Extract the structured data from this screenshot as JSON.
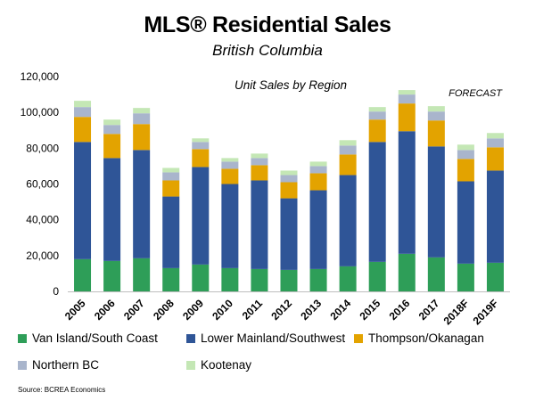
{
  "title": "MLS® Residential Sales",
  "subtitle": "British Columbia",
  "source": "Source: BCREA Economics",
  "chart_data": {
    "type": "bar",
    "stacked": true,
    "inner_title": "Unit Sales by Region",
    "annotation": "FORECAST",
    "categories": [
      "2005",
      "2006",
      "2007",
      "2008",
      "2009",
      "2010",
      "2011",
      "2012",
      "2013",
      "2014",
      "2015",
      "2016",
      "2017",
      "2018F",
      "2019F"
    ],
    "ylim": [
      0,
      120000
    ],
    "yticks": [
      0,
      20000,
      40000,
      60000,
      80000,
      100000,
      120000
    ],
    "ytick_labels": [
      "0",
      "20,000",
      "40,000",
      "60,000",
      "80,000",
      "100,000",
      "120,000"
    ],
    "grid": false,
    "legend_position": "bottom",
    "series": [
      {
        "name": "Van Island/South Coast",
        "color": "#2e9e58",
        "values": [
          18000,
          17000,
          18500,
          13000,
          15000,
          13000,
          12500,
          12000,
          12500,
          14000,
          16500,
          21000,
          19000,
          15500,
          16000
        ]
      },
      {
        "name": "Lower Mainland/Southwest",
        "color": "#2f5597",
        "values": [
          65500,
          57500,
          60500,
          40000,
          54500,
          47000,
          49500,
          40000,
          44000,
          51000,
          67000,
          68500,
          62000,
          46000,
          51500
        ]
      },
      {
        "name": "Thompson/Okanagan",
        "color": "#e3a300",
        "values": [
          14000,
          13500,
          14500,
          9000,
          10000,
          8500,
          8500,
          9000,
          9500,
          11500,
          12500,
          15500,
          14500,
          12500,
          13000
        ]
      },
      {
        "name": "Northern BC",
        "color": "#a9b5cc",
        "values": [
          5500,
          5000,
          6000,
          4500,
          4000,
          4000,
          4000,
          4000,
          4000,
          5000,
          4500,
          5000,
          5000,
          5000,
          5000
        ]
      },
      {
        "name": "Kootenay",
        "color": "#c4e7b5",
        "values": [
          3500,
          3000,
          3000,
          2500,
          2000,
          2000,
          2500,
          2500,
          2500,
          3000,
          2500,
          2500,
          3000,
          3000,
          3000
        ]
      }
    ]
  }
}
